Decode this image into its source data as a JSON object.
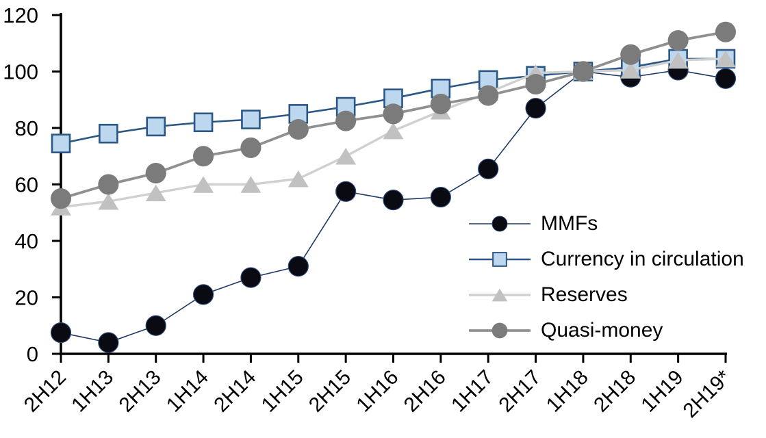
{
  "chart_data": {
    "type": "line",
    "title": "",
    "xlabel": "",
    "ylabel": "",
    "categories": [
      "2H12",
      "1H13",
      "2H13",
      "1H14",
      "2H14",
      "1H15",
      "2H15",
      "1H16",
      "2H16",
      "1H17",
      "2H17",
      "1H18",
      "2H18",
      "1H19",
      "2H19*"
    ],
    "series": [
      {
        "name": "MMFs",
        "marker": "circle",
        "marker_size": 29,
        "marker_color": "#0a0a12",
        "marker_border": "#2e4a79",
        "marker_border_width": 1.2,
        "line_color": "#1f3864",
        "line_width": 1.6,
        "values": [
          7.5,
          4,
          10,
          21,
          27,
          31,
          57.5,
          54.5,
          55.5,
          65.5,
          87,
          100,
          98,
          100.5,
          97.5
        ]
      },
      {
        "name": "Currency in circulation",
        "marker": "square",
        "marker_size": 26,
        "marker_color": "#bdd7ee",
        "marker_border": "#2a5784",
        "marker_border_width": 2.6,
        "line_color": "#2a5784",
        "line_width": 2.6,
        "values": [
          74.5,
          78,
          80.5,
          82,
          83,
          85,
          87.5,
          90.5,
          94,
          97,
          98.5,
          100,
          101.5,
          104.5,
          104.5
        ]
      },
      {
        "name": "Reserves",
        "marker": "triangle",
        "marker_size": 30,
        "marker_color": "#c1c1c1",
        "marker_border": "#c1c1c1",
        "marker_border_width": 0,
        "line_color": "#d0d0d0",
        "line_width": 3.4,
        "values": [
          52,
          54,
          57,
          60,
          60,
          62,
          70,
          79,
          86,
          92.5,
          99.5,
          100,
          100.5,
          104,
          104.5
        ]
      },
      {
        "name": "Quasi-money",
        "marker": "circle",
        "marker_size": 30,
        "marker_color": "#7b7b7b",
        "marker_border": "#7b7b7b",
        "marker_border_width": 0,
        "line_color": "#909090",
        "line_width": 3.8,
        "values": [
          55,
          60,
          64,
          70,
          73,
          79.5,
          82.5,
          85,
          88.5,
          91.5,
          95.5,
          100,
          106,
          111,
          114
        ]
      }
    ],
    "ylim": [
      0,
      120
    ],
    "yticks": [
      0,
      20,
      40,
      60,
      80,
      100,
      120
    ],
    "grid": false,
    "legend_position": "inside-right",
    "axis_color": "#000000",
    "text_color": "#000000"
  }
}
